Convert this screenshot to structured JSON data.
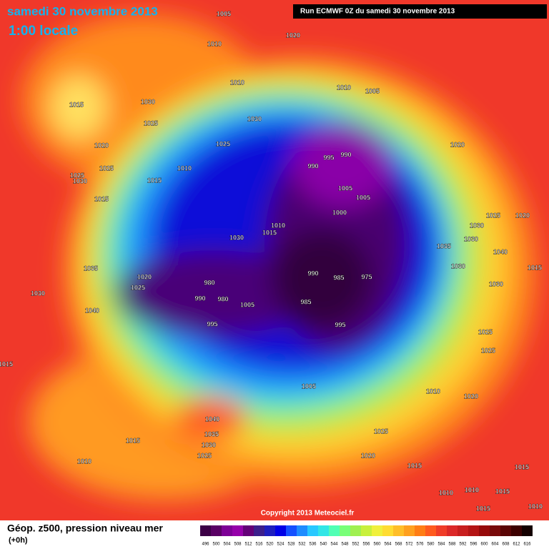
{
  "header": {
    "title": "samedi 30 novembre 2013",
    "time": "1:00 locale",
    "run": "Run ECMWF 0Z du samedi 30 novembre 2013",
    "copyright": "Copyright 2013 Meteociel.fr"
  },
  "footer": {
    "product": "Géop. z500, pression niveau mer",
    "lead": "(+0h)"
  },
  "pressure_labels": [
    "1005",
    "1010",
    "1020",
    "1010",
    "1015",
    "1030",
    "1025",
    "1030",
    "1010",
    "1005",
    "1025",
    "1020",
    "1010",
    "1025",
    "1025",
    "1030",
    "1015",
    "1015",
    "995",
    "990",
    "990",
    "1005",
    "1005",
    "1000",
    "1020",
    "1025",
    "1020",
    "1030",
    "1010",
    "1015",
    "1030",
    "1035",
    "1030",
    "1040",
    "1035",
    "1015",
    "1030",
    "990",
    "985",
    "975",
    "1020",
    "1025",
    "980",
    "1030",
    "990",
    "980",
    "1005",
    "985",
    "1030",
    "1040",
    "995",
    "995",
    "1025",
    "1025",
    "1015",
    "1005",
    "1010",
    "1020",
    "1040",
    "1035",
    "1015",
    "1030",
    "1025",
    "1025",
    "1010",
    "1020",
    "1015",
    "1015",
    "1010",
    "1010",
    "1015",
    "1015",
    "1010"
  ],
  "legend": {
    "labels": [
      "496",
      "500",
      "504",
      "508",
      "512",
      "516",
      "520",
      "524",
      "528",
      "532",
      "536",
      "540",
      "544",
      "548",
      "552",
      "556",
      "560",
      "564",
      "568",
      "572",
      "576",
      "580",
      "584",
      "588",
      "592",
      "596",
      "600",
      "604",
      "608",
      "612",
      "616"
    ],
    "colors": [
      "#3c0046",
      "#5a0064",
      "#7d0096",
      "#9600aa",
      "#640078",
      "#3c1e8c",
      "#1e1ebe",
      "#0000e6",
      "#1450ff",
      "#1e8cff",
      "#28c8ff",
      "#32e6e6",
      "#50ffb4",
      "#78ff78",
      "#a0f050",
      "#c8f03c",
      "#f0f03c",
      "#ffdc32",
      "#ffbe28",
      "#ffa01e",
      "#ff7d14",
      "#ff5a1e",
      "#f03c28",
      "#dc2828",
      "#c81e1e",
      "#b41414",
      "#960a0a",
      "#780a0a",
      "#5a0505",
      "#3c0000",
      "#140000"
    ]
  }
}
